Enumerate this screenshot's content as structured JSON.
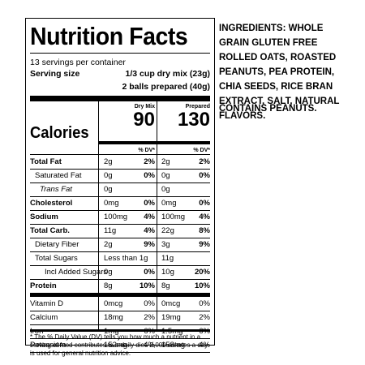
{
  "label": {
    "title": "Nutrition Facts",
    "servings_per_container": "13 servings per container",
    "serving_size_label": "Serving size",
    "serving_size_1": "1/3 cup dry mix (23g)",
    "serving_size_2": "2 balls prepared (40g)",
    "col1_header": "Dry Mix",
    "col2_header": "Prepared",
    "calories_label": "Calories",
    "calories_1": "90",
    "calories_2": "130",
    "dv_header": "% DV*",
    "nutrients": [
      {
        "name": "Total Fat",
        "amt1": "2g",
        "pct1": "2%",
        "amt2": "2g",
        "pct2": "2%"
      },
      {
        "name": "Saturated Fat",
        "amt1": "0g",
        "pct1": "0%",
        "amt2": "0g",
        "pct2": "0%"
      },
      {
        "name": "Trans Fat",
        "amt1": "0g",
        "pct1": "",
        "amt2": "0g",
        "pct2": ""
      },
      {
        "name": "Cholesterol",
        "amt1": "0mg",
        "pct1": "0%",
        "amt2": "0mg",
        "pct2": "0%"
      },
      {
        "name": "Sodium",
        "amt1": "100mg",
        "pct1": "4%",
        "amt2": "100mg",
        "pct2": "4%"
      },
      {
        "name": "Total Carb.",
        "amt1": "11g",
        "pct1": "4%",
        "amt2": "22g",
        "pct2": "8%"
      },
      {
        "name": "Dietary Fiber",
        "amt1": "2g",
        "pct1": "9%",
        "amt2": "3g",
        "pct2": "9%"
      },
      {
        "name": "Total Sugars",
        "amt1": "Less than 1g",
        "pct1": "",
        "amt2": "11g",
        "pct2": ""
      },
      {
        "name": "Incl Added Sugars",
        "amt1": "0g",
        "pct1": "0%",
        "amt2": "10g",
        "pct2": "20%"
      },
      {
        "name": "Protein",
        "amt1": "8g",
        "pct1": "10%",
        "amt2": "8g",
        "pct2": "10%"
      }
    ],
    "vitamins": [
      {
        "name": "Vitamin D",
        "amt1": "0mcg",
        "pct1": "0%",
        "amt2": "0mcg",
        "pct2": "0%"
      },
      {
        "name": "Calcium",
        "amt1": "18mg",
        "pct1": "2%",
        "amt2": "19mg",
        "pct2": "2%"
      },
      {
        "name": "Iron",
        "amt1": "1mg",
        "pct1": "6%",
        "amt2": "1.5mg",
        "pct2": "6%"
      },
      {
        "name": "Potassium",
        "amt1": "152mg",
        "pct1": "4%",
        "amt2": "158mg",
        "pct2": "4%"
      }
    ],
    "footnote": "* The % Daily Value (DV) tells you how much a nutrient in a serving of food contributes to a daily diet. 2,000 calories a day is used for general nutrition advice."
  },
  "ingredients_text": "INGREDIENTS: WHOLE GRAIN GLUTEN FREE ROLLED OATS, ROASTED PEANUTS, PEA PROTEIN, CHIA SEEDS, RICE BRAN EXTRACT, SALT, NATURAL FLAVORS.",
  "contains_text": "CONTAINS PEANUTS."
}
